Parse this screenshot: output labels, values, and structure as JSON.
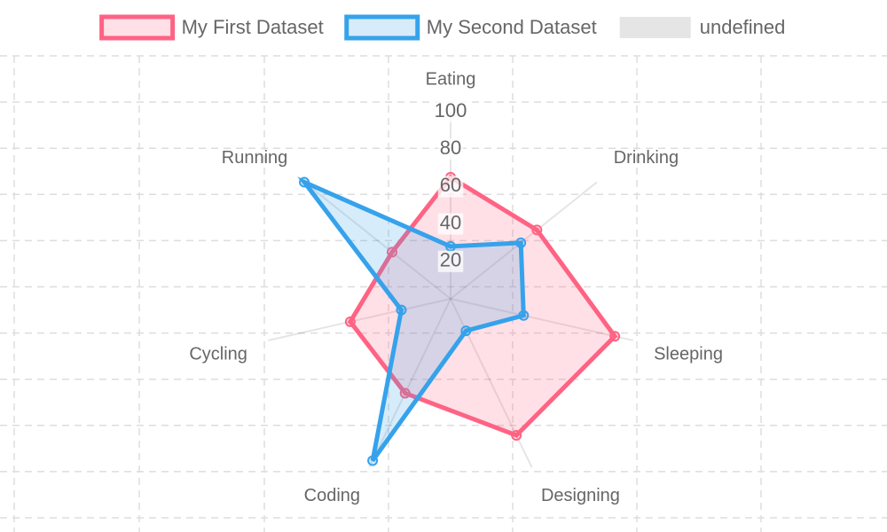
{
  "chart_data": {
    "type": "radar",
    "categories": [
      "Eating",
      "Drinking",
      "Sleeping",
      "Designing",
      "Coding",
      "Cycling",
      "Running"
    ],
    "series": [
      {
        "name": "My First Dataset",
        "color": "#ff6384",
        "fill": "rgba(255,99,132,0.2)",
        "values": [
          65,
          59,
          90,
          81,
          56,
          55,
          40
        ]
      },
      {
        "name": "My Second Dataset",
        "color": "#36a2eb",
        "fill": "rgba(54,162,235,0.2)",
        "values": [
          28,
          48,
          40,
          19,
          96,
          27,
          100
        ]
      },
      {
        "name": "undefined",
        "color": "rgba(0,0,0,0.1)",
        "fill": "rgba(0,0,0,0.1)",
        "values": [
          null,
          null,
          null,
          null,
          null,
          null,
          null
        ]
      }
    ],
    "ylim": [
      0,
      100
    ],
    "yticks": [
      20,
      40,
      60,
      80,
      100
    ],
    "legend": "top"
  }
}
